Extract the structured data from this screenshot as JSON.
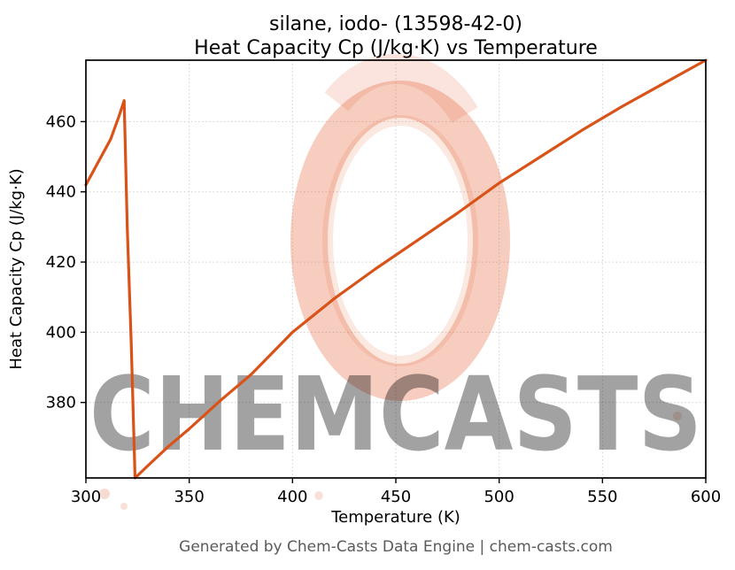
{
  "figure": {
    "title_line1": "silane, iodo- (13598-42-0)",
    "title_line2": "Heat Capacity Cp (J/kg·K) vs Temperature",
    "footer": "Generated by Chem-Casts Data Engine | chem-casts.com"
  },
  "watermark": {
    "text": "CHEMCASTS",
    "color": "#e05a2b"
  },
  "chart_data": {
    "type": "line",
    "title": "silane, iodo- (13598-42-0) — Heat Capacity Cp (J/kg·K) vs Temperature",
    "xlabel": "Temperature (K)",
    "ylabel": "Heat Capacity Cp (J/kg·K)",
    "xlim": [
      300,
      600
    ],
    "ylim": [
      358.5,
      477.5
    ],
    "x_ticks": [
      300,
      350,
      400,
      450,
      500,
      550,
      600
    ],
    "y_ticks": [
      380,
      400,
      420,
      440,
      460
    ],
    "grid": true,
    "legend": "none",
    "line_color": "#d95319",
    "series": [
      {
        "name": "Heat Capacity Cp",
        "x": [
          300,
          306,
          312,
          316,
          318.5,
          320,
          322,
          323.8,
          330,
          340,
          350,
          365,
          380,
          400,
          420,
          440,
          460,
          480,
          500,
          520,
          540,
          560,
          580,
          600
        ],
        "y": [
          442,
          448.5,
          455,
          461.5,
          466,
          430,
          396,
          358.5,
          362,
          367.5,
          372.5,
          380.5,
          388,
          400,
          409.5,
          418,
          426,
          434,
          442.5,
          450,
          457.5,
          464.5,
          471,
          477.5
        ]
      }
    ]
  }
}
